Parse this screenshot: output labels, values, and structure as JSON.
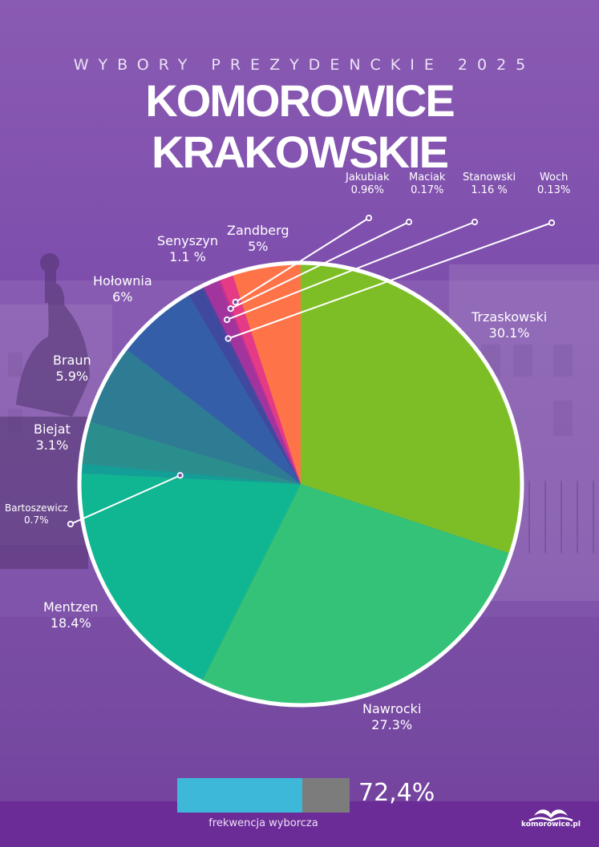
{
  "header": {
    "subtitle": "WYBORY PREZYDENCKIE 2025",
    "title": "KOMOROWICE KRAKOWSKIE"
  },
  "chart_data": {
    "type": "pie",
    "title": "",
    "slices": [
      {
        "name": "Trzaskowski",
        "value": 30.1,
        "label": "30.1%",
        "color": "#7dbe26"
      },
      {
        "name": "Nawrocki",
        "value": 27.3,
        "label": "27.3%",
        "color": "#33c278"
      },
      {
        "name": "Mentzen",
        "value": 18.4,
        "label": "18.4%",
        "color": "#10b592"
      },
      {
        "name": "Bartoszewicz",
        "value": 0.7,
        "label": "0.7%",
        "color": "#139e98"
      },
      {
        "name": "Biejat",
        "value": 3.1,
        "label": "3.1%",
        "color": "#2a8f8c"
      },
      {
        "name": "Braun",
        "value": 5.9,
        "label": "5.9%",
        "color": "#2e7b94"
      },
      {
        "name": "Hołownia",
        "value": 6,
        "label": "6%",
        "color": "#345fa8"
      },
      {
        "name": "Senyszyn",
        "value": 1.1,
        "label": "1.1 %",
        "color": "#3f4a9e"
      },
      {
        "name": "Woch",
        "value": 0.13,
        "label": "0.13%",
        "color": "#5a3f9c"
      },
      {
        "name": "Stanowski",
        "value": 1.16,
        "label": "1.16 %",
        "color": "#a2349e"
      },
      {
        "name": "Maciak",
        "value": 0.17,
        "label": "0.17%",
        "color": "#c4308d"
      },
      {
        "name": "Jakubiak",
        "value": 0.96,
        "label": "0.96%",
        "color": "#e53a86"
      },
      {
        "name": "Zandberg",
        "value": 5,
        "label": "5%",
        "color": "#ff7349"
      }
    ]
  },
  "turnout": {
    "value": 72.4,
    "value_text": "72,4%",
    "label": "frekwencja wyborcza",
    "fill_color": "#3db8d8",
    "rest_color": "#7c7c7c"
  },
  "logo": {
    "text": "komorowice.pl"
  }
}
